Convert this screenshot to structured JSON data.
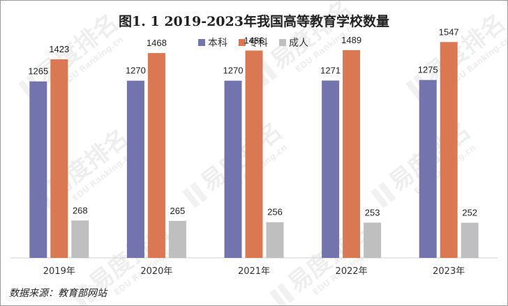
{
  "watermark": {
    "brand": "易度排名",
    "domain": "EDU Ranking.cn"
  },
  "source_text": "数据来源：教育部网站",
  "colors": {
    "本科": "#7373ad",
    "专科": "#d97852",
    "成人": "#bfbfbf"
  },
  "chart_data": {
    "type": "bar",
    "title": "图1. 1 2019-2023年我国高等教育学校数量",
    "categories": [
      "2019年",
      "2020年",
      "2021年",
      "2022年",
      "2023年"
    ],
    "series": [
      {
        "name": "本科",
        "values": [
          1265,
          1270,
          1270,
          1271,
          1275
        ]
      },
      {
        "name": "专科",
        "values": [
          1423,
          1468,
          1486,
          1489,
          1547
        ]
      },
      {
        "name": "成人",
        "values": [
          268,
          265,
          256,
          253,
          252
        ]
      }
    ],
    "xlabel": "",
    "ylabel": "",
    "ylim": [
      0,
      1700
    ],
    "legend": "top-center",
    "grid": false,
    "data_labels": true
  }
}
